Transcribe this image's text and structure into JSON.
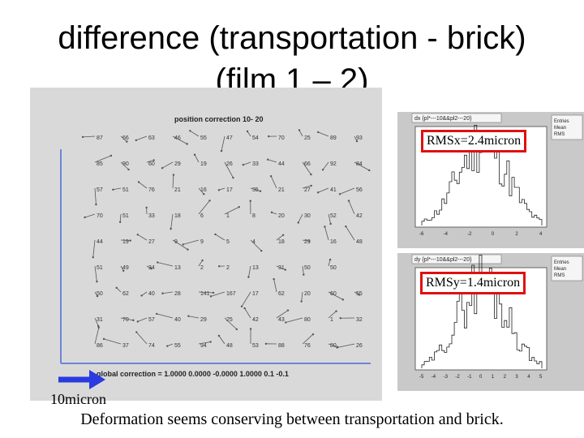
{
  "title": {
    "line1": "difference (transportation - brick)",
    "line2": "(film 1 – 2)"
  },
  "vector_plot": {
    "title": "position correction  10- 20",
    "global_correction": "global correction = 1.0000  0.0000 -0.0000  1.0000      0.1      -0.1",
    "rows": [
      [
        "87",
        "66",
        "63",
        "46",
        "55",
        "47",
        "54",
        "70",
        "25",
        "89",
        "93"
      ],
      [
        "85",
        "90",
        "60",
        "29",
        "19",
        "26",
        "33",
        "44",
        "66",
        "92",
        "84"
      ],
      [
        "57",
        "51",
        "76",
        "21",
        "16",
        "17",
        "35",
        "21",
        "27",
        "41",
        "56"
      ],
      [
        "70",
        "51",
        "33",
        "18",
        "6",
        "1",
        "8",
        "20",
        "30",
        "52",
        "42"
      ],
      [
        "44",
        "19",
        "27",
        "9",
        "9",
        "5",
        "4",
        "18",
        "29",
        "16",
        "48"
      ],
      [
        "51",
        "49",
        "34",
        "13",
        "2",
        "2",
        "13",
        "31",
        "50",
        "50",
        ""
      ],
      [
        "50",
        "62",
        "40",
        "28",
        "141",
        "167",
        "17",
        "62",
        "20",
        "60",
        "55"
      ],
      [
        "31",
        "70",
        "57",
        "40",
        "29",
        "25",
        "42",
        "43",
        "80",
        "1",
        "32"
      ],
      [
        "86",
        "37",
        "74",
        "55",
        "94",
        "48",
        "53",
        "88",
        "76",
        "80",
        "26"
      ]
    ]
  },
  "histograms": [
    {
      "header": "dx {pl*---10&&pl2---20}",
      "stats": [
        "Entries",
        "Mean",
        "RMS"
      ],
      "ticks": [
        "-6",
        "-4",
        "-2",
        "0",
        "2",
        "4"
      ]
    },
    {
      "header": "dy {pl*---10&&pl2---20}",
      "stats": [
        "Entries",
        "Mean",
        "RMS"
      ],
      "ticks": [
        "-5",
        "-4",
        "-3",
        "-2",
        "-1",
        "0",
        "1",
        "2",
        "3",
        "4",
        "5"
      ]
    }
  ],
  "rms_x": "RMSx=2.4micron",
  "rms_y": "RMSy=1.4micron",
  "scale_label": "10micron",
  "caption": "Deformation seems conserving between transportation and brick.",
  "colors": {
    "rms_border": "#e01010",
    "scale_arrow": "#2a3be0"
  }
}
